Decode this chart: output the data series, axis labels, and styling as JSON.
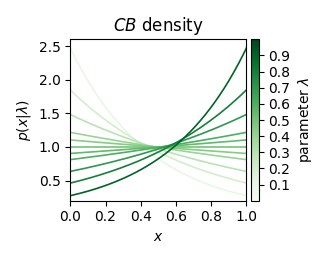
{
  "title": "$\\mathit{CB}$ density",
  "xlabel": "$x$",
  "ylabel": "$p(x|\\lambda)$",
  "xlim": [
    0.0,
    1.0
  ],
  "ylim": [
    0.2,
    2.6
  ],
  "yticks": [
    0.5,
    1.0,
    1.5,
    2.0,
    2.5
  ],
  "xticks": [
    0.0,
    0.2,
    0.4,
    0.6,
    0.8,
    1.0
  ],
  "lambdas": [
    0.1,
    0.2,
    0.3,
    0.4,
    0.45,
    0.5,
    0.55,
    0.6,
    0.7,
    0.8,
    0.9
  ],
  "cmap": "Greens",
  "clim": [
    0.0,
    1.0
  ],
  "colorbar_ticks": [
    0.1,
    0.2,
    0.3,
    0.4,
    0.5,
    0.6,
    0.7,
    0.8,
    0.9
  ],
  "colorbar_label": "parameter $\\lambda$",
  "n_points": 300,
  "linewidth": 1.2,
  "figsize": [
    3.25,
    2.59
  ],
  "dpi": 100
}
